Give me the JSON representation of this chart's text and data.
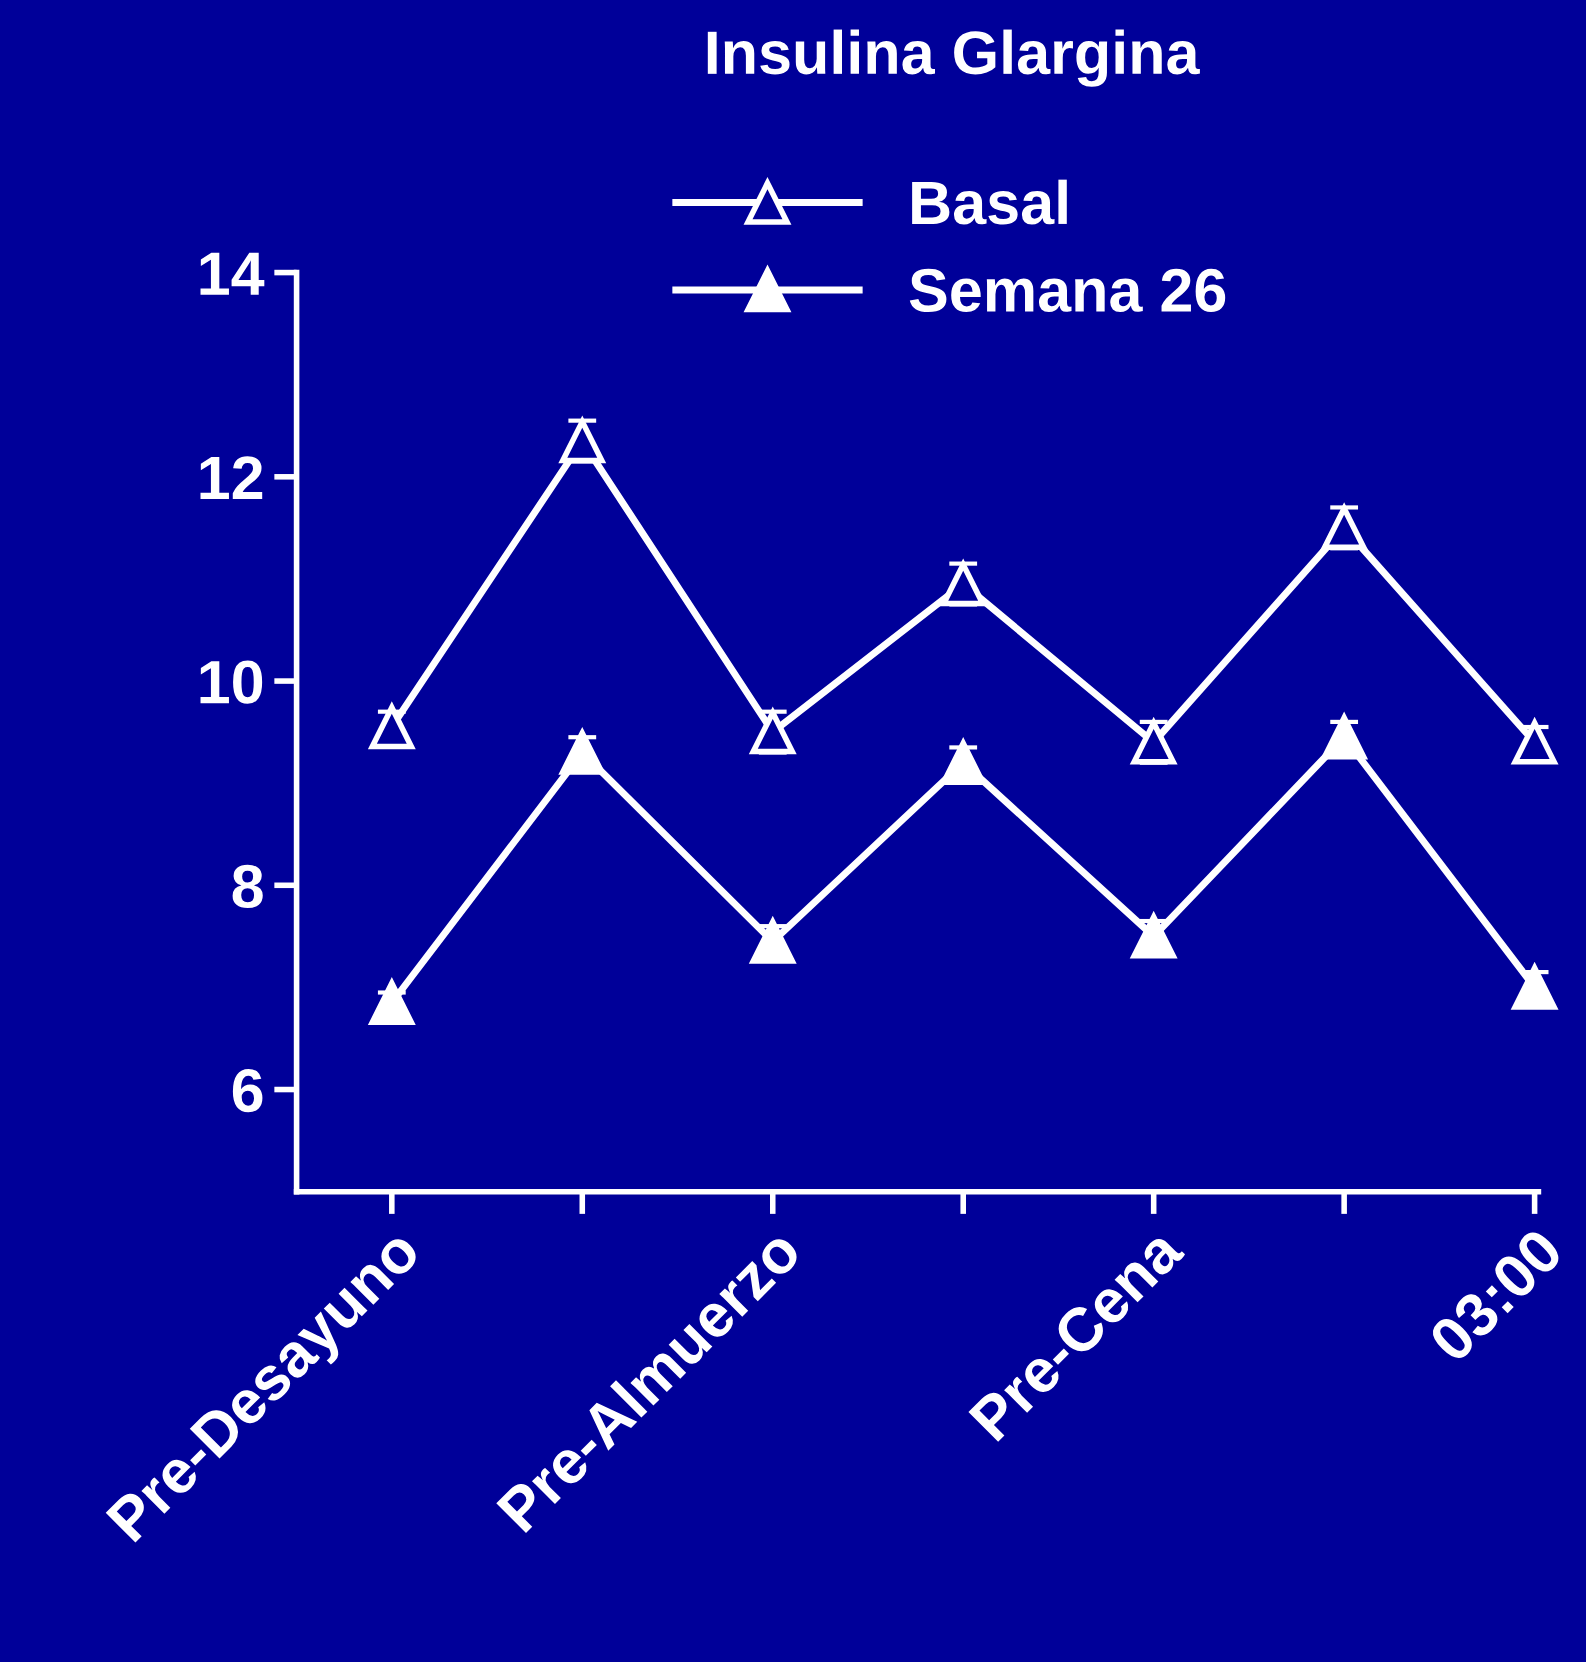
{
  "chart_data": {
    "type": "line",
    "title": "Insulina Glargina",
    "categories": [
      "Pre-Desayuno",
      null,
      "Pre-Almuerzo",
      null,
      "Pre-Cena",
      null,
      "03:00"
    ],
    "series": [
      {
        "name": "Basal",
        "color": "#ffffff",
        "values": [
          9.55,
          12.35,
          9.5,
          10.95,
          9.4,
          11.5,
          9.4
        ],
        "errors": [
          0.15,
          0.2,
          0.2,
          0.2,
          0.2,
          0.2,
          0.15
        ]
      },
      {
        "name": "Semana 26",
        "color": "#ffffff",
        "values": [
          6.85,
          9.3,
          7.45,
          9.2,
          7.5,
          9.45,
          7.0
        ],
        "errors": [
          0.1,
          0.15,
          0.15,
          0.15,
          0.15,
          0.15,
          0.15
        ]
      }
    ],
    "ylim": [
      5,
      14
    ],
    "yticks": [
      6,
      8,
      10,
      12,
      14
    ],
    "grid": false,
    "legend": "top",
    "marker": "triangle",
    "line_style": "solid"
  }
}
